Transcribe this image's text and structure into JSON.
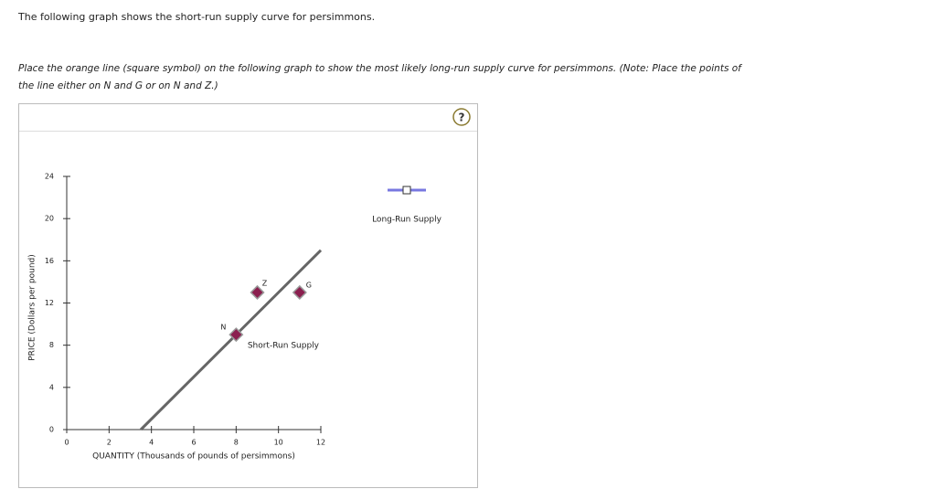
{
  "header": "The following graph shows the short-run supply curve for persimmons.",
  "instructions": "Place the orange line (square symbol) on the following graph to show the most likely long-run supply curve for persimmons. (Note: Place the points of the line either on N and G or on N and Z.)",
  "help": "?",
  "chart_data": {
    "type": "line",
    "x_label": "QUANTITY (Thousands of pounds of persimmons)",
    "y_label": "PRICE (Dollars per pound)",
    "xlim": [
      0,
      12
    ],
    "ylim": [
      0,
      24
    ],
    "xticks": [
      0,
      2,
      4,
      6,
      8,
      10,
      12
    ],
    "yticks": [
      0,
      4,
      8,
      12,
      16,
      20,
      24
    ],
    "series": [
      {
        "name": "Short-Run Supply",
        "color": "#666666",
        "x": [
          3.5,
          12
        ],
        "values": [
          0,
          17
        ]
      }
    ],
    "points": [
      {
        "label": "N",
        "x": 8,
        "y": 9
      },
      {
        "label": "Z",
        "x": 9,
        "y": 13
      },
      {
        "label": "G",
        "x": 11,
        "y": 13
      }
    ],
    "point_color": "#8b1f4f",
    "legend_items": [
      {
        "name": "Long-Run Supply",
        "color": "#7878e0"
      }
    ]
  }
}
